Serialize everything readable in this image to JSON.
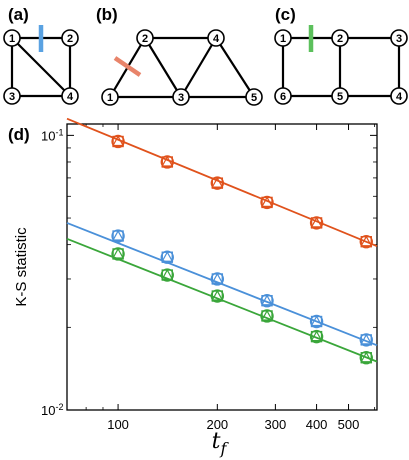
{
  "colors": {
    "series_a": "#4a90d9",
    "series_b": "#e0521c",
    "series_c": "#3aa63a",
    "cut_a": "#5aa2e2",
    "cut_b": "#e8846a",
    "cut_c": "#5cc05c"
  },
  "graphs": [
    {
      "label": "(a)",
      "nodes": [
        "1",
        "2",
        "3",
        "4"
      ],
      "edges": [
        [
          "1",
          "2"
        ],
        [
          "1",
          "3"
        ],
        [
          "1",
          "4"
        ],
        [
          "2",
          "4"
        ],
        [
          "3",
          "4"
        ]
      ],
      "cut_edge": [
        "1",
        "2"
      ],
      "cut_color_key": "cut_a"
    },
    {
      "label": "(b)",
      "nodes": [
        "1",
        "2",
        "3",
        "4",
        "5"
      ],
      "edges": [
        [
          "1",
          "2"
        ],
        [
          "1",
          "3"
        ],
        [
          "2",
          "3"
        ],
        [
          "2",
          "4"
        ],
        [
          "3",
          "4"
        ],
        [
          "3",
          "5"
        ],
        [
          "4",
          "5"
        ]
      ],
      "cut_edge": [
        "1",
        "2"
      ],
      "cut_color_key": "cut_b"
    },
    {
      "label": "(c)",
      "nodes": [
        "1",
        "2",
        "3",
        "4",
        "5",
        "6"
      ],
      "edges": [
        [
          "1",
          "2"
        ],
        [
          "2",
          "3"
        ],
        [
          "3",
          "4"
        ],
        [
          "4",
          "5"
        ],
        [
          "5",
          "6"
        ],
        [
          "6",
          "1"
        ],
        [
          "2",
          "5"
        ]
      ],
      "cut_edge": [
        "1",
        "2"
      ],
      "cut_color_key": "cut_c"
    }
  ],
  "chart_data": {
    "panel_label": "(d)",
    "type": "scatter",
    "xscale": "log",
    "yscale": "log",
    "xlabel": "t_f",
    "xlabel_main": "t",
    "xlabel_sub": "f",
    "ylabel": "K-S statistic",
    "xlim": [
      70,
      610
    ],
    "ylim": [
      0.01,
      0.11
    ],
    "xticks": [
      {
        "value": 100,
        "label": "100"
      },
      {
        "value": 200,
        "label": "200"
      },
      {
        "value": 300,
        "label": "300"
      },
      {
        "value": 400,
        "label": "400"
      },
      {
        "value": 500,
        "label": "500"
      }
    ],
    "yticks": [
      {
        "value": 0.1,
        "base": "10",
        "exp": "-1"
      },
      {
        "value": 0.01,
        "base": "10",
        "exp": "-2"
      }
    ],
    "series": [
      {
        "color_key": "series_b",
        "x": [
          100,
          141,
          200,
          283,
          400,
          566
        ],
        "y": [
          0.095,
          0.08,
          0.067,
          0.057,
          0.048,
          0.041
        ],
        "fit_x": [
          70,
          610
        ],
        "fit_y": [
          0.115,
          0.0395
        ]
      },
      {
        "color_key": "series_a",
        "x": [
          100,
          141,
          200,
          283,
          400,
          566
        ],
        "y": [
          0.043,
          0.036,
          0.03,
          0.025,
          0.021,
          0.018
        ],
        "fit_x": [
          70,
          610
        ],
        "fit_y": [
          0.048,
          0.0172
        ]
      },
      {
        "color_key": "series_c",
        "x": [
          100,
          141,
          200,
          283,
          400,
          566
        ],
        "y": [
          0.037,
          0.031,
          0.026,
          0.022,
          0.0185,
          0.0155
        ],
        "fit_x": [
          70,
          610
        ],
        "fit_y": [
          0.042,
          0.015
        ]
      }
    ]
  }
}
